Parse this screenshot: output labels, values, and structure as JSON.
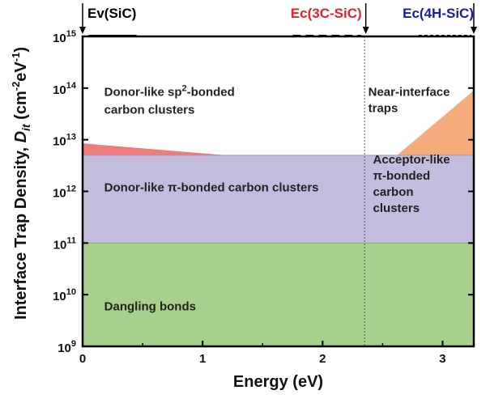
{
  "chart_data": {
    "type": "area",
    "title": "",
    "xlabel": "Energy (eV)",
    "ylabel": {
      "prefix": "Interface Trap Density, ",
      "symbol": "D",
      "subscript": "it",
      "unit_open": " (cm",
      "exp1": "-2",
      "unit_mid": "eV",
      "exp2": "-1",
      "unit_close": ")"
    },
    "xlim": [
      0,
      3.26
    ],
    "ylim": [
      1000000000.0,
      1000000000000000.0
    ],
    "y_scale": "log",
    "x_ticks": [
      {
        "value": 0,
        "label": "0"
      },
      {
        "value": 1,
        "label": "1"
      },
      {
        "value": 2,
        "label": "2"
      },
      {
        "value": 3,
        "label": "3"
      }
    ],
    "y_ticks": [
      {
        "value": 1000000000.0,
        "base": "10",
        "exp": "9"
      },
      {
        "value": 10000000000.0,
        "base": "10",
        "exp": "10"
      },
      {
        "value": 100000000000.0,
        "base": "10",
        "exp": "11"
      },
      {
        "value": 1000000000000.0,
        "base": "10",
        "exp": "12"
      },
      {
        "value": 10000000000000.0,
        "base": "10",
        "exp": "13"
      },
      {
        "value": 100000000000000.0,
        "base": "10",
        "exp": "14"
      },
      {
        "value": 1000000000000000.0,
        "base": "10",
        "exp": "15"
      }
    ],
    "band_markers": [
      {
        "label": "Ev(SiC)",
        "x": 0,
        "color": "#000000"
      },
      {
        "label": "Ec(3C-SiC)",
        "x": 2.36,
        "color": "#e8202a"
      },
      {
        "label": "Ec(4H-SiC)",
        "x": 3.26,
        "color": "#1a1aa8"
      }
    ],
    "regions": [
      {
        "name": "Dangling bonds",
        "color": "#a8d08d",
        "x": [
          0,
          3.26
        ],
        "y_low": 1000000000.0,
        "y_high": 100000000000.0
      },
      {
        "name": "Donor-like π-bonded carbon clusters",
        "color": "#c2bddd",
        "x": [
          0,
          3.26
        ],
        "y_low": 100000000000.0,
        "y_high": 5000000000000.0
      },
      {
        "name": "Donor-like sp2-bonded carbon clusters",
        "color": "#ee7c79",
        "polygon": [
          [
            0,
            5000000000000.0
          ],
          [
            0,
            8500000000000.0
          ],
          [
            1.2,
            5000000000000.0
          ]
        ]
      },
      {
        "name": "Near-interface traps",
        "color": "#f5ac7c",
        "polygon": [
          [
            2.62,
            5000000000000.0
          ],
          [
            3.26,
            90000000000000.0
          ],
          [
            3.26,
            5000000000000.0
          ]
        ]
      }
    ],
    "annotations": [
      {
        "lines": [
          "Donor-like sp",
          "carbon clusters"
        ],
        "sup": "2",
        "after_sup": "-bonded",
        "x": 0.18,
        "y": 70000000000000.0
      },
      {
        "lines": [
          "Donor-like π-bonded carbon clusters"
        ],
        "x": 0.18,
        "y": 1200000000000.0
      },
      {
        "lines": [
          "Dangling bonds"
        ],
        "x": 0.18,
        "y": 6000000000.0
      },
      {
        "lines": [
          "Near-interface",
          "traps"
        ],
        "x": 2.38,
        "y": 70000000000000.0
      },
      {
        "lines": [
          "Acceptor-like",
          "π-bonded",
          "carbon",
          "clusters"
        ],
        "x": 2.42,
        "y": 3500000000000.0
      }
    ],
    "divider_x": 2.35,
    "grid": false
  }
}
